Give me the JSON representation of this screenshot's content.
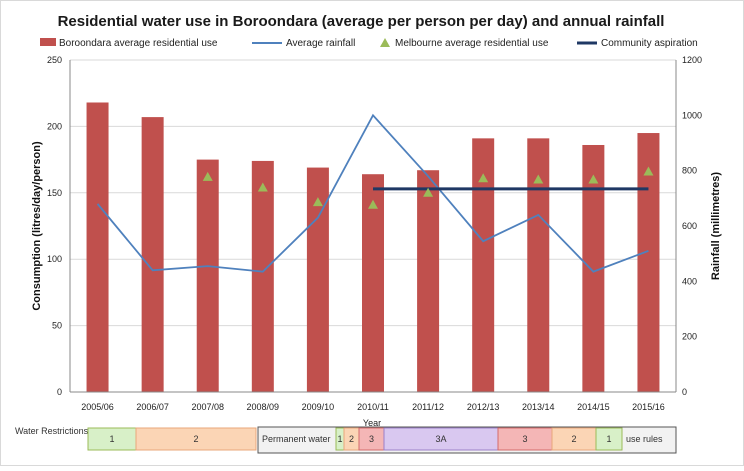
{
  "chart_data": {
    "type": "bar",
    "title": "Residential water use in Boroondara (average per person per day) and annual rainfall",
    "xlabel": "Year",
    "ylabel": "Consumption (litres/day/person)",
    "y2label": "Rainfall (millimetres)",
    "categories": [
      "2005/06",
      "2006/07",
      "2007/08",
      "2008/09",
      "2009/10",
      "2010/11",
      "2011/12",
      "2012/13",
      "2013/14",
      "2014/15",
      "2015/16"
    ],
    "ylim": [
      0,
      250
    ],
    "yticks": [
      0,
      50,
      100,
      150,
      200,
      250
    ],
    "y2lim": [
      0,
      1200
    ],
    "y2ticks": [
      0,
      200,
      400,
      600,
      800,
      1000,
      1200
    ],
    "grid": true,
    "legend_position": "top",
    "series": [
      {
        "name": "Boroondara average residential use",
        "kind": "bar",
        "axis": "left",
        "color": "#c0504d",
        "values": [
          218,
          207,
          175,
          174,
          169,
          164,
          167,
          191,
          191,
          186,
          195
        ]
      },
      {
        "name": "Average rainfall",
        "kind": "line",
        "axis": "right",
        "color": "#4f81bd",
        "values": [
          680,
          440,
          455,
          435,
          630,
          1000,
          780,
          545,
          640,
          435,
          510
        ]
      },
      {
        "name": "Melbourne average residential use",
        "kind": "marker",
        "axis": "left",
        "color": "#9bbb59",
        "values": [
          null,
          null,
          162,
          154,
          143,
          141,
          150,
          161,
          160,
          160,
          166
        ]
      },
      {
        "name": "Community aspiration",
        "kind": "flat-line",
        "axis": "left",
        "color": "#1f3864",
        "value": 153,
        "from": "2010/11",
        "to": "2015/16"
      }
    ]
  },
  "water_restrictions": {
    "label": "Water Restrictions",
    "stages": [
      {
        "text": "1",
        "color": "#d8f0c8",
        "border": "#9bbb59"
      },
      {
        "text": "2",
        "color": "#fbd5b5",
        "border": "#e9a77a"
      },
      {
        "text": "Permanent water",
        "color": "#f2f2f2",
        "border": "#555555"
      },
      {
        "text": "1",
        "color": "#d8f0c8",
        "border": "#9bbb59"
      },
      {
        "text": "2",
        "color": "#fbd5b5",
        "border": "#e9a77a"
      },
      {
        "text": "3",
        "color": "#f4b6b6",
        "border": "#d36b6b"
      },
      {
        "text": "3A",
        "color": "#d9c8f0",
        "border": "#9a7fc8"
      },
      {
        "text": "3",
        "color": "#f4b6b6",
        "border": "#d36b6b"
      },
      {
        "text": "2",
        "color": "#fbd5b5",
        "border": "#e9a77a"
      },
      {
        "text": "1",
        "color": "#d8f0c8",
        "border": "#9bbb59"
      },
      {
        "text": "use rules",
        "color": "#f2f2f2",
        "border": "#555555"
      }
    ]
  }
}
